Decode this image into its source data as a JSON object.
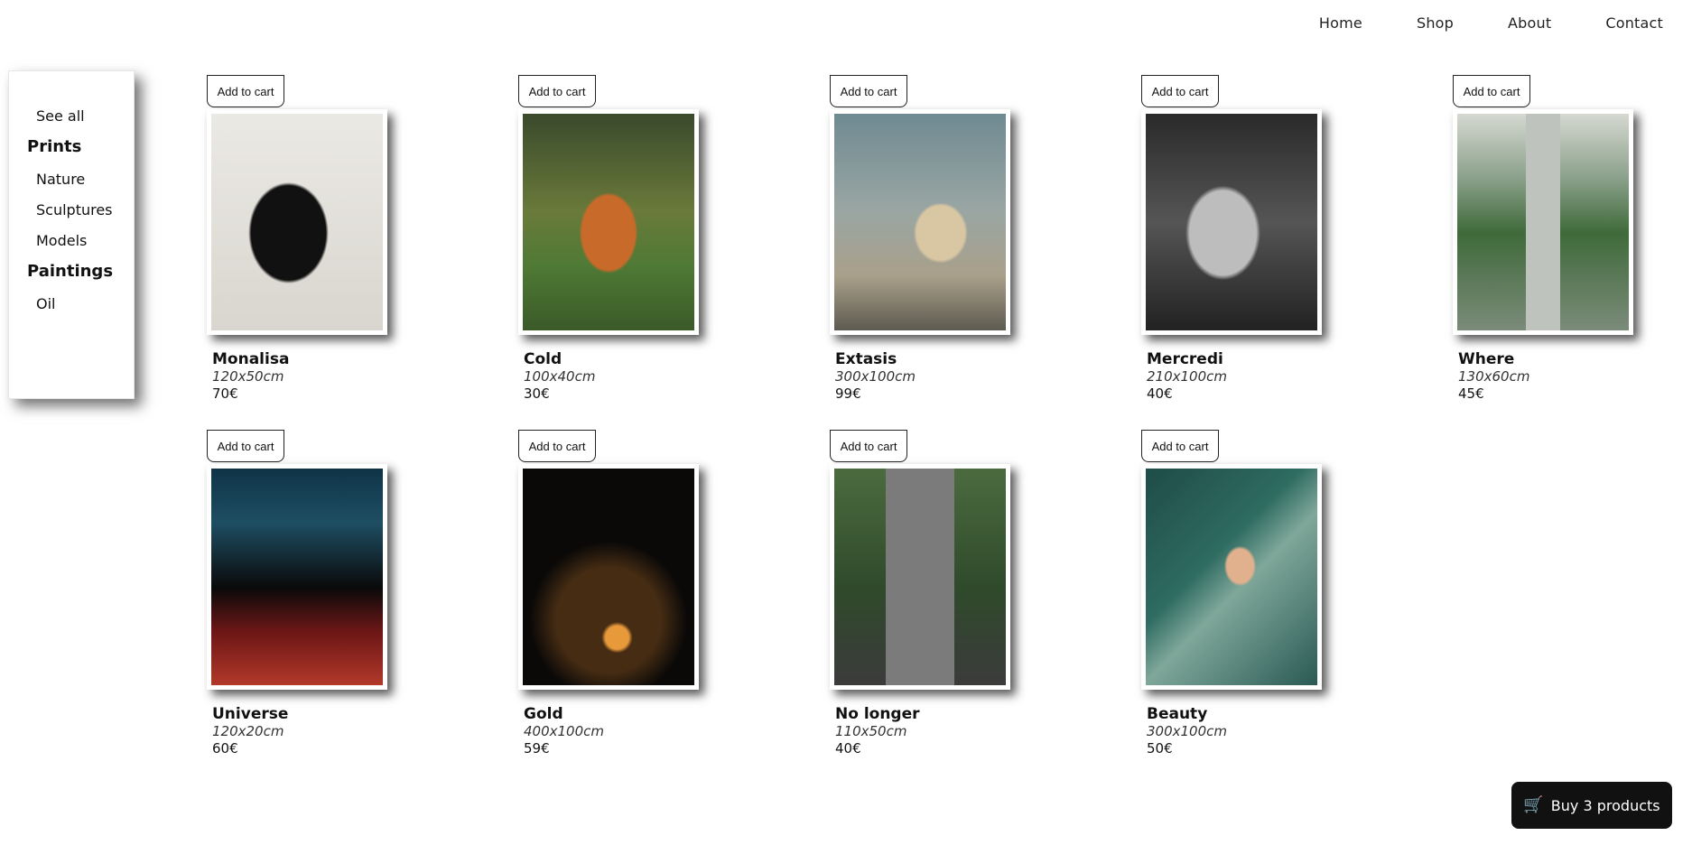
{
  "nav": {
    "items": [
      {
        "label": "Home"
      },
      {
        "label": "Shop"
      },
      {
        "label": "About"
      },
      {
        "label": "Contact"
      }
    ]
  },
  "sidebar": {
    "see_all": "See all",
    "categories": [
      {
        "label": "Prints",
        "items": [
          {
            "label": "Nature"
          },
          {
            "label": "Sculptures"
          },
          {
            "label": "Models"
          }
        ]
      },
      {
        "label": "Paintings",
        "items": [
          {
            "label": "Oil"
          }
        ]
      }
    ]
  },
  "products": [
    {
      "add_label": "Add to cart",
      "title": "Monalisa",
      "size": "120x50cm",
      "price": "70€"
    },
    {
      "add_label": "Add to cart",
      "title": "Cold",
      "size": "100x40cm",
      "price": "30€"
    },
    {
      "add_label": "Add to cart",
      "title": "Extasis",
      "size": "300x100cm",
      "price": "99€"
    },
    {
      "add_label": "Add to cart",
      "title": "Mercredi",
      "size": "210x100cm",
      "price": "40€"
    },
    {
      "add_label": "Add to cart",
      "title": "Where",
      "size": "130x60cm",
      "price": "45€"
    },
    {
      "add_label": "Add to cart",
      "title": "Universe",
      "size": "120x20cm",
      "price": "60€"
    },
    {
      "add_label": "Add to cart",
      "title": "Gold",
      "size": "400x100cm",
      "price": "59€"
    },
    {
      "add_label": "Add to cart",
      "title": "No longer",
      "size": "110x50cm",
      "price": "40€"
    },
    {
      "add_label": "Add to cart",
      "title": "Beauty",
      "size": "300x100cm",
      "price": "50€"
    }
  ],
  "cart_button": {
    "icon": "cart-icon",
    "label": "Buy 3 products"
  }
}
